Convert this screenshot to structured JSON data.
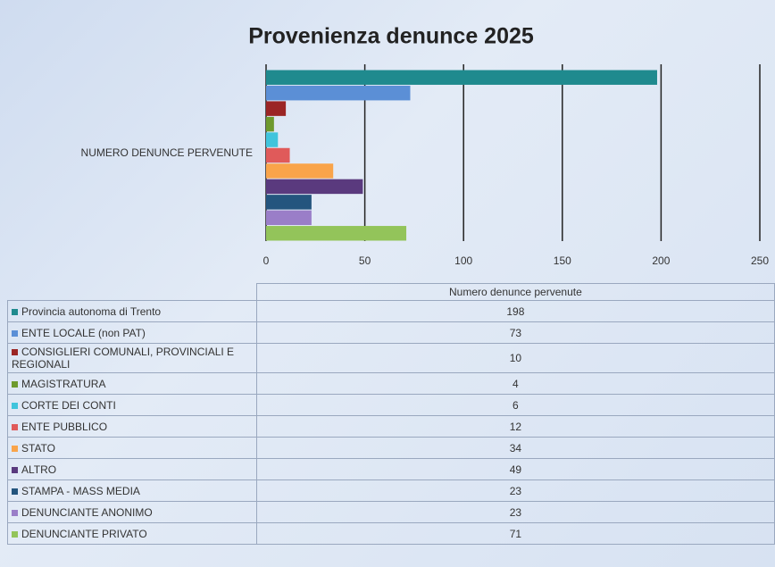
{
  "chart_data": {
    "type": "bar",
    "orientation": "horizontal",
    "title": "Provenienza denunce 2025",
    "categories": [
      "NUMERO DENUNCE PERVENUTE"
    ],
    "table_header": "Numero denunce pervenute",
    "series": [
      {
        "name": "Provincia autonoma di Trento",
        "color": "#1f8a8e",
        "values": [
          198
        ]
      },
      {
        "name": "ENTE LOCALE (non PAT)",
        "color": "#5b8fd6",
        "values": [
          73
        ]
      },
      {
        "name": "CONSIGLIERI COMUNALI, PROVINCIALI E REGIONALI",
        "color": "#9b2525",
        "values": [
          10
        ]
      },
      {
        "name": "MAGISTRATURA",
        "color": "#6e9a2e",
        "values": [
          4
        ]
      },
      {
        "name": "CORTE DEI CONTI",
        "color": "#3fc4dc",
        "values": [
          6
        ]
      },
      {
        "name": "ENTE PUBBLICO",
        "color": "#e05a5a",
        "values": [
          12
        ]
      },
      {
        "name": "STATO",
        "color": "#f9a44a",
        "values": [
          34
        ]
      },
      {
        "name": "ALTRO",
        "color": "#5a3a7e",
        "values": [
          49
        ]
      },
      {
        "name": "STAMPA - MASS MEDIA",
        "color": "#24557e",
        "values": [
          23
        ]
      },
      {
        "name": "DENUNCIANTE ANONIMO",
        "color": "#9a7ec8",
        "values": [
          23
        ]
      },
      {
        "name": "DENUNCIANTE PRIVATO",
        "color": "#93c45a",
        "values": [
          71
        ]
      }
    ],
    "xlim": [
      0,
      250
    ],
    "xticks": [
      0,
      50,
      100,
      150,
      200,
      250
    ],
    "grid": true
  }
}
